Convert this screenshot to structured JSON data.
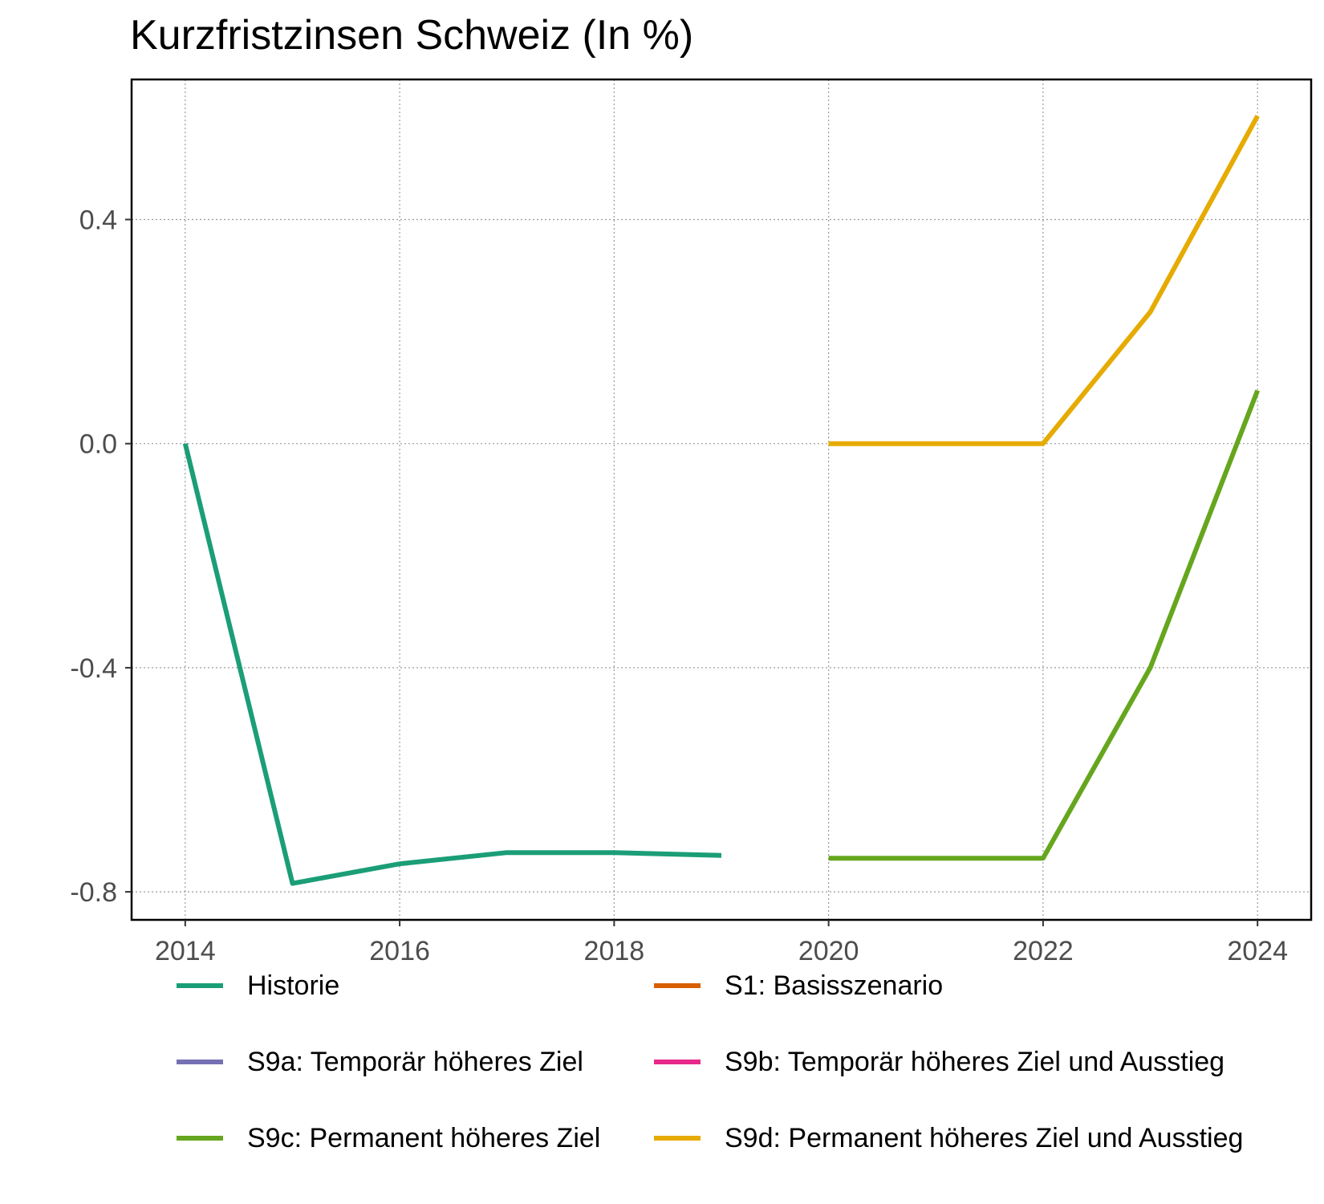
{
  "chart_data": {
    "type": "line",
    "title": "Kurzfristzinsen Schweiz (In %)",
    "xlabel": "",
    "ylabel": "",
    "xlim": [
      2013.5,
      2024.5
    ],
    "ylim": [
      -0.85,
      0.65
    ],
    "x_ticks": [
      2014,
      2016,
      2018,
      2020,
      2022,
      2024
    ],
    "y_ticks": [
      0.4,
      0.0,
      -0.4,
      -0.8
    ],
    "y_tick_labels": [
      "0.4",
      "0.0",
      "-0.4",
      "-0.8"
    ],
    "grid": true,
    "legend_position": "bottom",
    "series": [
      {
        "name": "Historie",
        "color": "#1b9e77",
        "x": [
          2014,
          2015,
          2016,
          2017,
          2018,
          2019
        ],
        "y": [
          0.0,
          -0.785,
          -0.75,
          -0.73,
          -0.73,
          -0.735
        ]
      },
      {
        "name": "S1: Basisszenario",
        "color": "#d95f02",
        "x": [],
        "y": []
      },
      {
        "name": "S9a: Temporär höheres Ziel",
        "color": "#7570b3",
        "x": [],
        "y": []
      },
      {
        "name": "S9b: Temporär höheres Ziel und Ausstieg",
        "color": "#e7298a",
        "x": [],
        "y": []
      },
      {
        "name": "S9c: Permanent höheres Ziel",
        "color": "#66a61e",
        "x": [
          2020,
          2021,
          2022,
          2023,
          2024
        ],
        "y": [
          -0.74,
          -0.74,
          -0.74,
          -0.4,
          0.095
        ]
      },
      {
        "name": "S9d: Permanent höheres Ziel und Ausstieg",
        "color": "#e6ab02",
        "x": [
          2020,
          2021,
          2022,
          2023,
          2024
        ],
        "y": [
          0.0,
          0.0,
          0.0,
          0.235,
          0.585
        ]
      }
    ]
  }
}
